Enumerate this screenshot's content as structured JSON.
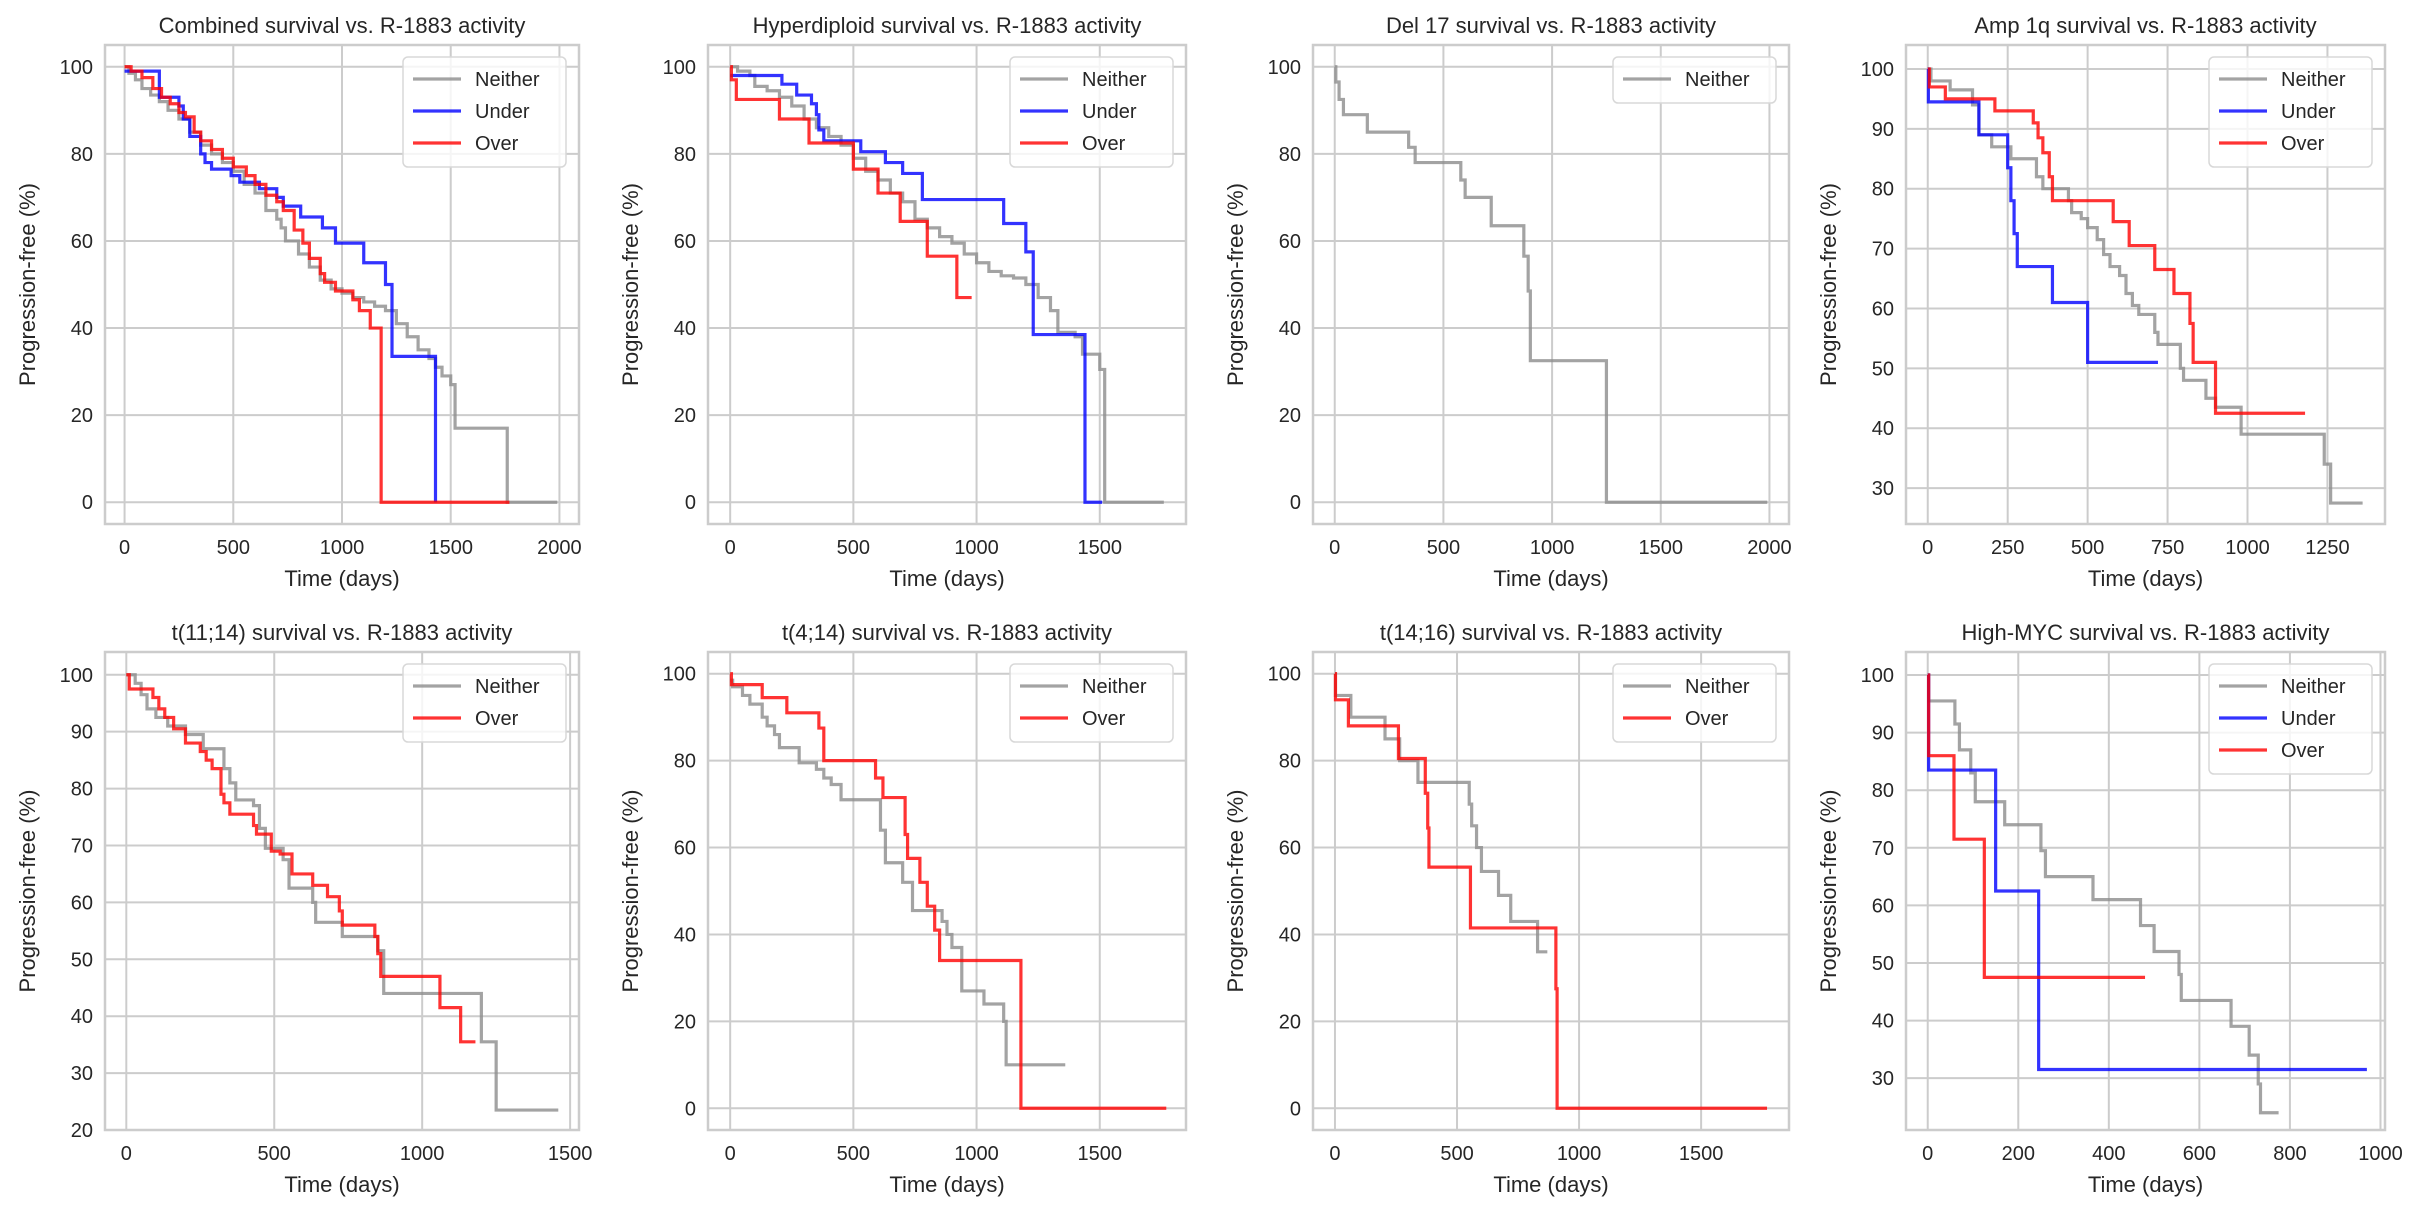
{
  "figure": {
    "colors": {
      "Neither": "#8c8c8c",
      "Under": "#0000ff",
      "Over": "#ff0000"
    },
    "grid_color": "#cccccc",
    "spine_color": "#cccccc"
  },
  "chart_data": [
    {
      "type": "line",
      "step": true,
      "title": "Combined survival vs. R-1883 activity",
      "xlabel": "Time (days)",
      "ylabel": "Progression-free (%)",
      "xlim": [
        -90,
        2090
      ],
      "ylim": [
        -5,
        105
      ],
      "xticks": [
        0,
        500,
        1000,
        1500,
        2000
      ],
      "yticks": [
        0,
        20,
        40,
        60,
        80,
        100
      ],
      "grid": true,
      "legend": "top-right",
      "legend_entries": [
        "Neither",
        "Under",
        "Over"
      ],
      "series": [
        {
          "name": "Neither",
          "x": [
            0,
            20,
            50,
            80,
            120,
            160,
            200,
            250,
            300,
            350,
            400,
            450,
            500,
            550,
            600,
            650,
            700,
            720,
            740,
            800,
            850,
            900,
            950,
            1000,
            1050,
            1100,
            1150,
            1200,
            1250,
            1300,
            1350,
            1400,
            1430,
            1460,
            1500,
            1520,
            1750,
            1760,
            1990
          ],
          "y": [
            100,
            98.5,
            97,
            95,
            93.5,
            92,
            90,
            88,
            85,
            82,
            80,
            78,
            76,
            73,
            71,
            67,
            65,
            63,
            60,
            57,
            54,
            51,
            49,
            48,
            47,
            46,
            45,
            44,
            41,
            38,
            35,
            33,
            31,
            29,
            27,
            17,
            17,
            0,
            0
          ]
        },
        {
          "name": "Under",
          "x": [
            0,
            140,
            160,
            250,
            270,
            300,
            350,
            370,
            400,
            490,
            530,
            620,
            700,
            730,
            810,
            910,
            970,
            1100,
            1200,
            1230,
            1430,
            1430
          ],
          "y": [
            99,
            99,
            93,
            91,
            88,
            84,
            80,
            78,
            76.5,
            75,
            73.5,
            72,
            70,
            68,
            65.5,
            63,
            59.5,
            55,
            50,
            33.5,
            33.5,
            0
          ]
        },
        {
          "name": "Over",
          "x": [
            0,
            30,
            80,
            130,
            170,
            210,
            250,
            280,
            320,
            350,
            400,
            450,
            500,
            560,
            600,
            650,
            700,
            730,
            780,
            820,
            850,
            900,
            920,
            970,
            1050,
            1080,
            1130,
            1170,
            1180,
            1770
          ],
          "y": [
            100,
            99,
            97.5,
            95,
            93,
            91.5,
            89.5,
            88.5,
            85,
            83,
            81,
            79,
            77,
            75,
            73,
            70.5,
            69,
            67,
            62.5,
            59.5,
            56,
            52.5,
            50.5,
            48.5,
            46.5,
            44,
            40,
            40,
            0,
            0
          ]
        }
      ]
    },
    {
      "type": "line",
      "step": true,
      "title": "Hyperdiploid survival vs. R-1883 activity",
      "xlabel": "Time (days)",
      "ylabel": "Progression-free (%)",
      "xlim": [
        -90,
        1850
      ],
      "ylim": [
        -5,
        105
      ],
      "xticks": [
        0,
        500,
        1000,
        1500
      ],
      "yticks": [
        0,
        20,
        40,
        60,
        80,
        100
      ],
      "grid": true,
      "legend": "top-right",
      "legend_entries": [
        "Neither",
        "Under",
        "Over"
      ],
      "series": [
        {
          "name": "Neither",
          "x": [
            0,
            30,
            80,
            100,
            150,
            200,
            250,
            300,
            350,
            400,
            450,
            500,
            550,
            600,
            650,
            700,
            750,
            800,
            850,
            900,
            950,
            1000,
            1050,
            1100,
            1150,
            1200,
            1250,
            1300,
            1330,
            1400,
            1430,
            1500,
            1520,
            1760
          ],
          "y": [
            100,
            99,
            98,
            95.5,
            94.5,
            93,
            91,
            88,
            86,
            84,
            82,
            79,
            76,
            74,
            71,
            69,
            65,
            63,
            61,
            59.5,
            57,
            55,
            53,
            52,
            51.5,
            50,
            47,
            44,
            39,
            38,
            34,
            30.5,
            0,
            0
          ]
        },
        {
          "name": "Under",
          "x": [
            0,
            160,
            210,
            270,
            330,
            350,
            360,
            380,
            530,
            630,
            700,
            780,
            1110,
            1200,
            1230,
            1430,
            1440,
            1510
          ],
          "y": [
            98,
            98,
            96,
            93.5,
            91.5,
            89,
            85.5,
            83,
            80.5,
            78,
            75.5,
            69.5,
            64,
            57.5,
            38.5,
            38.5,
            0,
            0
          ]
        },
        {
          "name": "Over",
          "x": [
            0,
            5,
            25,
            200,
            320,
            500,
            600,
            690,
            800,
            920,
            980
          ],
          "y": [
            100,
            97,
            92.5,
            88,
            82.5,
            76.5,
            71,
            64.5,
            56.5,
            47,
            47
          ]
        }
      ]
    },
    {
      "type": "line",
      "step": true,
      "title": "Del 17 survival vs. R-1883 activity",
      "xlabel": "Time (days)",
      "ylabel": "Progression-free (%)",
      "xlim": [
        -100,
        2090
      ],
      "ylim": [
        -5,
        105
      ],
      "xticks": [
        0,
        500,
        1000,
        1500,
        2000
      ],
      "yticks": [
        0,
        20,
        40,
        60,
        80,
        100
      ],
      "grid": true,
      "legend": "top-right",
      "legend_entries": [
        "Neither"
      ],
      "series": [
        {
          "name": "Neither",
          "x": [
            0,
            5,
            20,
            40,
            150,
            340,
            370,
            580,
            600,
            720,
            870,
            890,
            900,
            1250,
            1990
          ],
          "y": [
            100,
            96.5,
            92.5,
            89,
            85,
            81.5,
            78,
            74,
            70,
            63.5,
            56.5,
            48.5,
            32.5,
            0,
            0
          ]
        }
      ]
    },
    {
      "type": "line",
      "step": true,
      "title": "Amp 1q survival vs. R-1883 activity",
      "xlabel": "Time (days)",
      "ylabel": "Progression-free (%)",
      "xlim": [
        -68,
        1430
      ],
      "ylim": [
        24,
        104
      ],
      "xticks": [
        0,
        250,
        500,
        750,
        1000,
        1250
      ],
      "yticks": [
        30,
        40,
        50,
        60,
        70,
        80,
        90,
        100
      ],
      "grid": true,
      "legend": "top-right",
      "legend_entries": [
        "Neither",
        "Under",
        "Over"
      ],
      "series": [
        {
          "name": "Neither",
          "x": [
            0,
            10,
            70,
            140,
            160,
            200,
            260,
            340,
            360,
            390,
            440,
            450,
            480,
            500,
            530,
            550,
            570,
            600,
            620,
            640,
            660,
            710,
            720,
            790,
            800,
            870,
            900,
            980,
            1240,
            1260,
            1360
          ],
          "y": [
            100,
            98,
            96.5,
            94,
            89,
            87,
            85,
            82,
            80,
            80,
            78,
            76,
            75,
            73.5,
            71.5,
            69,
            67,
            65.5,
            62.5,
            60.5,
            59,
            56,
            54,
            50,
            48,
            45,
            43.5,
            39,
            34,
            27.5,
            27.5
          ]
        },
        {
          "name": "Under",
          "x": [
            0,
            2,
            160,
            250,
            260,
            270,
            280,
            390,
            500,
            720
          ],
          "y": [
            100,
            94.5,
            89,
            83.5,
            78,
            72.5,
            67,
            61,
            51,
            51
          ]
        },
        {
          "name": "Over",
          "x": [
            0,
            5,
            55,
            210,
            330,
            345,
            360,
            380,
            390,
            580,
            630,
            710,
            770,
            820,
            830,
            900,
            1180
          ],
          "y": [
            100,
            97,
            95,
            93,
            91,
            88.5,
            86,
            82,
            78,
            74.5,
            70.5,
            66.5,
            62.5,
            57.5,
            51,
            42.5,
            42.5
          ]
        }
      ]
    },
    {
      "type": "line",
      "step": true,
      "title": "t(11;14) survival vs. R-1883 activity",
      "xlabel": "Time (days)",
      "ylabel": "Progression-free (%)",
      "xlim": [
        -72,
        1530
      ],
      "ylim": [
        20,
        104
      ],
      "xticks": [
        0,
        500,
        1000,
        1500
      ],
      "yticks": [
        20,
        30,
        40,
        50,
        60,
        70,
        80,
        90,
        100
      ],
      "grid": true,
      "legend": "top-right",
      "legend_entries": [
        "Neither",
        "Over"
      ],
      "series": [
        {
          "name": "Neither",
          "x": [
            0,
            30,
            50,
            70,
            100,
            140,
            200,
            260,
            330,
            350,
            370,
            430,
            450,
            470,
            530,
            550,
            630,
            640,
            730,
            850,
            870,
            1200,
            1250,
            1460
          ],
          "y": [
            100,
            98.5,
            96.5,
            94,
            92.5,
            91,
            89.5,
            87,
            83.5,
            81,
            78,
            77,
            73,
            69.5,
            67.5,
            62.5,
            60,
            56.5,
            54,
            51.5,
            44,
            35.5,
            23.5,
            23.5
          ]
        },
        {
          "name": "Over",
          "x": [
            0,
            10,
            90,
            110,
            130,
            160,
            200,
            250,
            270,
            290,
            320,
            330,
            350,
            430,
            440,
            490,
            520,
            560,
            630,
            680,
            720,
            730,
            840,
            850,
            860,
            1060,
            1130,
            1180
          ],
          "y": [
            100,
            97.5,
            96,
            94,
            92.5,
            90.5,
            88,
            86.5,
            85,
            83.5,
            79,
            77.5,
            75.5,
            73.5,
            72,
            69,
            68.5,
            65,
            63,
            61,
            58.5,
            56,
            54,
            51,
            47,
            41.5,
            35.5,
            35.5
          ]
        }
      ]
    },
    {
      "type": "line",
      "step": true,
      "title": "t(4;14) survival vs. R-1883 activity",
      "xlabel": "Time (days)",
      "ylabel": "Progression-free (%)",
      "xlim": [
        -90,
        1850
      ],
      "ylim": [
        -5,
        105
      ],
      "xticks": [
        0,
        500,
        1000,
        1500
      ],
      "yticks": [
        0,
        20,
        40,
        60,
        80,
        100
      ],
      "grid": true,
      "legend": "top-right",
      "legend_entries": [
        "Neither",
        "Over"
      ],
      "series": [
        {
          "name": "Neither",
          "x": [
            0,
            10,
            50,
            80,
            130,
            150,
            180,
            200,
            280,
            350,
            380,
            410,
            450,
            600,
            610,
            630,
            700,
            740,
            860,
            880,
            900,
            940,
            1030,
            1110,
            1120,
            1360
          ],
          "y": [
            98.5,
            97,
            95,
            93,
            90,
            88,
            86,
            83,
            79.5,
            78,
            76,
            74.5,
            71,
            71,
            64,
            56.5,
            52,
            45.5,
            43,
            40,
            37,
            27,
            24,
            20,
            10,
            10
          ]
        },
        {
          "name": "Over",
          "x": [
            0,
            5,
            130,
            230,
            360,
            380,
            590,
            620,
            710,
            720,
            770,
            800,
            830,
            850,
            1170,
            1180,
            1770
          ],
          "y": [
            100,
            97.5,
            94.5,
            91,
            87.5,
            80,
            76,
            71.5,
            63,
            57.5,
            52,
            46.5,
            41,
            34,
            34,
            0,
            0
          ]
        }
      ]
    },
    {
      "type": "line",
      "step": true,
      "title": "t(14;16) survival vs. R-1883 activity",
      "xlabel": "Time (days)",
      "ylabel": "Progression-free (%)",
      "xlim": [
        -90,
        1860
      ],
      "ylim": [
        -5,
        105
      ],
      "xticks": [
        0,
        500,
        1000,
        1500
      ],
      "yticks": [
        0,
        20,
        40,
        60,
        80,
        100
      ],
      "grid": true,
      "legend": "top-right",
      "legend_entries": [
        "Neither",
        "Over"
      ],
      "series": [
        {
          "name": "Neither",
          "x": [
            0,
            2,
            65,
            205,
            265,
            340,
            550,
            560,
            580,
            600,
            670,
            720,
            830,
            870
          ],
          "y": [
            100,
            95,
            90,
            85,
            80,
            75,
            70,
            65,
            60,
            54.5,
            49,
            43,
            36,
            36
          ]
        },
        {
          "name": "Over",
          "x": [
            0,
            2,
            55,
            260,
            370,
            380,
            385,
            395,
            555,
            905,
            910,
            915,
            1770
          ],
          "y": [
            100,
            94,
            88,
            80.5,
            72.5,
            64.5,
            55.5,
            55.5,
            41.5,
            27.5,
            0,
            0,
            0
          ]
        }
      ]
    },
    {
      "type": "line",
      "step": true,
      "title": "High-MYC survival vs. R-1883 activity",
      "xlabel": "Time (days)",
      "ylabel": "Progression-free (%)",
      "xlim": [
        -48,
        1010
      ],
      "ylim": [
        21,
        104
      ],
      "xticks": [
        0,
        200,
        400,
        600,
        800,
        1000
      ],
      "yticks": [
        30,
        40,
        50,
        60,
        70,
        80,
        90,
        100
      ],
      "grid": true,
      "legend": "top-right",
      "legend_entries": [
        "Neither",
        "Under",
        "Over"
      ],
      "series": [
        {
          "name": "Neither",
          "x": [
            0,
            2,
            60,
            70,
            95,
            105,
            170,
            250,
            260,
            365,
            470,
            500,
            555,
            560,
            670,
            710,
            730,
            735,
            775
          ],
          "y": [
            100,
            95.5,
            91.5,
            87,
            83,
            78,
            74,
            69.5,
            65,
            61,
            56.5,
            52,
            48,
            43.5,
            39,
            34,
            29,
            24,
            24
          ]
        },
        {
          "name": "Under",
          "x": [
            0,
            2,
            150,
            245,
            970
          ],
          "y": [
            100,
            83.5,
            62.5,
            31.5,
            31.5
          ]
        },
        {
          "name": "Over",
          "x": [
            0,
            2,
            58,
            125,
            480
          ],
          "y": [
            100,
            86,
            71.5,
            47.5,
            47.5
          ]
        }
      ]
    }
  ]
}
